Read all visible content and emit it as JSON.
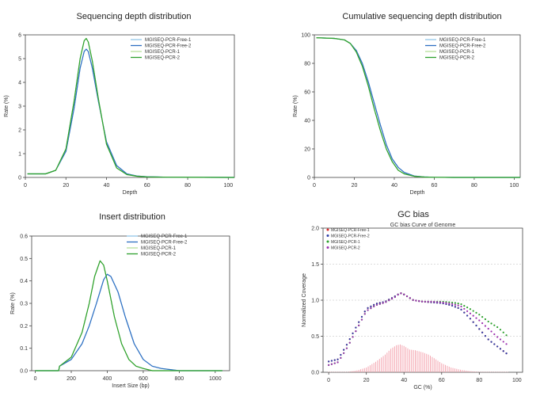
{
  "chart_data": [
    {
      "type": "line",
      "title": "Sequencing depth distribution",
      "xlabel": "Depth",
      "ylabel": "Rate (%)",
      "xlim": [
        0,
        103
      ],
      "ylim": [
        0,
        6
      ],
      "xticks": [
        "0",
        "20",
        "40",
        "60",
        "80",
        "100"
      ],
      "yticks": [
        "0",
        "1",
        "2",
        "3",
        "4",
        "5",
        "6"
      ],
      "legend_position": "top-right",
      "series": [
        {
          "name": "MGISEQ-PCR-Free-1",
          "color": "#92c5e8",
          "x": [
            1,
            10,
            15,
            20,
            24,
            27,
            29,
            30,
            31,
            33,
            36,
            40,
            45,
            50,
            55,
            60,
            70,
            103
          ],
          "y": [
            0.15,
            0.15,
            0.3,
            1.1,
            2.9,
            4.6,
            5.3,
            5.4,
            5.3,
            4.6,
            3.2,
            1.5,
            0.5,
            0.15,
            0.06,
            0.03,
            0.01,
            0.0
          ]
        },
        {
          "name": "MGISEQ-PCR-Free-2",
          "color": "#2e6fc2",
          "x": [
            1,
            10,
            15,
            20,
            24,
            27,
            29,
            30,
            31,
            33,
            36,
            40,
            45,
            50,
            55,
            60,
            70,
            103
          ],
          "y": [
            0.15,
            0.15,
            0.3,
            1.1,
            2.9,
            4.6,
            5.3,
            5.4,
            5.3,
            4.6,
            3.2,
            1.5,
            0.5,
            0.15,
            0.06,
            0.03,
            0.01,
            0.0
          ]
        },
        {
          "name": "MGISEQ-PCR-1",
          "color": "#b7e09a",
          "x": [
            1,
            10,
            15,
            20,
            24,
            27,
            29,
            30,
            31,
            33,
            36,
            40,
            45,
            50,
            55,
            60,
            70,
            103
          ],
          "y": [
            0.15,
            0.15,
            0.3,
            1.2,
            3.2,
            5.0,
            5.75,
            5.85,
            5.7,
            4.9,
            3.3,
            1.4,
            0.4,
            0.12,
            0.05,
            0.02,
            0.01,
            0.0
          ]
        },
        {
          "name": "MGISEQ-PCR-2",
          "color": "#2ca02c",
          "x": [
            1,
            10,
            15,
            20,
            24,
            27,
            29,
            30,
            31,
            33,
            36,
            40,
            45,
            50,
            55,
            60,
            70,
            103
          ],
          "y": [
            0.15,
            0.15,
            0.3,
            1.2,
            3.2,
            5.0,
            5.75,
            5.85,
            5.7,
            4.9,
            3.3,
            1.4,
            0.4,
            0.12,
            0.05,
            0.02,
            0.01,
            0.0
          ]
        }
      ]
    },
    {
      "type": "line",
      "title": "Cumulative sequencing depth distribution",
      "xlabel": "Depth",
      "ylabel": "Rate (%)",
      "xlim": [
        0,
        103
      ],
      "ylim": [
        0,
        100
      ],
      "xticks": [
        "0",
        "20",
        "40",
        "60",
        "80",
        "100"
      ],
      "yticks": [
        "0",
        "20",
        "40",
        "60",
        "80",
        "100"
      ],
      "legend_position": "top-right",
      "series": [
        {
          "name": "MGISEQ-PCR-Free-1",
          "color": "#92c5e8",
          "x": [
            1,
            10,
            15,
            18,
            21,
            24,
            27,
            30,
            33,
            36,
            39,
            42,
            45,
            50,
            55,
            60,
            70,
            103
          ],
          "y": [
            98,
            97.5,
            96.5,
            94,
            89,
            80,
            67,
            52,
            37,
            23,
            13,
            7,
            3.5,
            1,
            0.4,
            0.1,
            0,
            0
          ]
        },
        {
          "name": "MGISEQ-PCR-Free-2",
          "color": "#2e6fc2",
          "x": [
            1,
            10,
            15,
            18,
            21,
            24,
            27,
            30,
            33,
            36,
            39,
            42,
            45,
            50,
            55,
            60,
            70,
            103
          ],
          "y": [
            98,
            97.5,
            96.5,
            94,
            89,
            80,
            67,
            52,
            37,
            23,
            13,
            7,
            3.5,
            1,
            0.4,
            0.1,
            0,
            0
          ]
        },
        {
          "name": "MGISEQ-PCR-1",
          "color": "#b7e09a",
          "x": [
            1,
            10,
            15,
            18,
            21,
            24,
            27,
            30,
            33,
            36,
            39,
            42,
            45,
            50,
            55,
            60,
            70,
            103
          ],
          "y": [
            98,
            97.5,
            96.5,
            94,
            88,
            78,
            64,
            48,
            33,
            20,
            11,
            5,
            2.5,
            0.8,
            0.3,
            0.1,
            0,
            0
          ]
        },
        {
          "name": "MGISEQ-PCR-2",
          "color": "#2ca02c",
          "x": [
            1,
            10,
            15,
            18,
            21,
            24,
            27,
            30,
            33,
            36,
            39,
            42,
            45,
            50,
            55,
            60,
            70,
            103
          ],
          "y": [
            98,
            97.5,
            96.5,
            94,
            88,
            78,
            64,
            48,
            33,
            20,
            11,
            5,
            2.5,
            0.8,
            0.3,
            0.1,
            0,
            0
          ]
        }
      ]
    },
    {
      "type": "line",
      "title": "Insert distribution",
      "xlabel": "Insert Size (bp)",
      "ylabel": "Rate (%)",
      "xlim": [
        -20,
        1080
      ],
      "ylim": [
        0,
        0.6
      ],
      "xticks": [
        "0",
        "200",
        "400",
        "600",
        "800",
        "1000"
      ],
      "yticks": [
        "0.0",
        "0.1",
        "0.2",
        "0.3",
        "0.4",
        "0.5",
        "0.6"
      ],
      "legend_position": "top-right",
      "series": [
        {
          "name": "MGISEQ-PCR-Free-1",
          "color": "#92c5e8",
          "x": [
            0,
            130,
            135,
            200,
            260,
            300,
            340,
            380,
            400,
            420,
            460,
            500,
            550,
            600,
            650,
            700,
            800,
            1040
          ],
          "y": [
            0,
            0,
            0.02,
            0.05,
            0.12,
            0.2,
            0.3,
            0.405,
            0.43,
            0.42,
            0.35,
            0.24,
            0.12,
            0.05,
            0.02,
            0.01,
            0,
            0
          ]
        },
        {
          "name": "MGISEQ-PCR-Free-2",
          "color": "#2e6fc2",
          "x": [
            0,
            130,
            135,
            200,
            260,
            300,
            340,
            380,
            400,
            420,
            460,
            500,
            550,
            600,
            650,
            700,
            800,
            1040
          ],
          "y": [
            0,
            0,
            0.02,
            0.05,
            0.12,
            0.2,
            0.3,
            0.405,
            0.43,
            0.42,
            0.35,
            0.24,
            0.12,
            0.05,
            0.02,
            0.01,
            0,
            0
          ]
        },
        {
          "name": "MGISEQ-PCR-1",
          "color": "#b7e09a",
          "x": [
            0,
            130,
            135,
            200,
            260,
            300,
            330,
            360,
            380,
            400,
            440,
            480,
            520,
            560,
            600,
            650,
            700,
            1040
          ],
          "y": [
            0,
            0,
            0.02,
            0.06,
            0.17,
            0.3,
            0.42,
            0.49,
            0.47,
            0.4,
            0.24,
            0.12,
            0.05,
            0.02,
            0.01,
            0,
            0,
            0
          ]
        },
        {
          "name": "MGISEQ-PCR-2",
          "color": "#2ca02c",
          "x": [
            0,
            130,
            135,
            200,
            260,
            300,
            330,
            360,
            380,
            400,
            440,
            480,
            520,
            560,
            600,
            650,
            700,
            1040
          ],
          "y": [
            0,
            0,
            0.02,
            0.06,
            0.17,
            0.3,
            0.42,
            0.49,
            0.47,
            0.4,
            0.24,
            0.12,
            0.05,
            0.02,
            0.01,
            0,
            0,
            0
          ]
        }
      ]
    },
    {
      "type": "scatter",
      "title": "GC bias",
      "subtitle": "GC bias Curve of Genome",
      "xlabel": "GC (%)",
      "ylabel": "Normalized Coverage",
      "xlim": [
        -3,
        103
      ],
      "ylim": [
        0,
        2.0
      ],
      "xticks": [
        "0",
        "20",
        "40",
        "60",
        "80",
        "100"
      ],
      "yticks": [
        "0.0",
        "0.5",
        "1.0",
        "1.5",
        "2.0"
      ],
      "hlines": [
        0.5,
        1.0,
        1.5
      ],
      "legend_position": "top-left",
      "series": [
        {
          "name": "MGISEQ-PCR-Free-1",
          "color": "#d62728",
          "x": [
            0,
            5,
            10,
            15,
            20,
            25,
            30,
            35,
            38,
            40,
            45,
            50,
            55,
            60,
            65,
            70,
            75,
            80,
            85,
            90,
            95
          ],
          "y": [
            0.15,
            0.18,
            0.4,
            0.65,
            0.88,
            0.95,
            0.98,
            1.05,
            1.1,
            1.08,
            1.0,
            0.98,
            0.97,
            0.96,
            0.93,
            0.88,
            0.75,
            0.6,
            0.45,
            0.35,
            0.25
          ]
        },
        {
          "name": "MGISEQ-PCR-Free-2",
          "color": "#2e3fa8",
          "x": [
            0,
            5,
            10,
            15,
            20,
            25,
            30,
            35,
            38,
            40,
            45,
            50,
            55,
            60,
            65,
            70,
            75,
            80,
            85,
            90,
            95
          ],
          "y": [
            0.15,
            0.18,
            0.4,
            0.65,
            0.88,
            0.95,
            0.98,
            1.05,
            1.1,
            1.08,
            1.0,
            0.98,
            0.97,
            0.96,
            0.93,
            0.88,
            0.75,
            0.6,
            0.45,
            0.35,
            0.25
          ]
        },
        {
          "name": "MGISEQ-PCR-1",
          "color": "#2ca02c",
          "x": [
            0,
            5,
            10,
            15,
            20,
            25,
            30,
            35,
            38,
            40,
            45,
            50,
            55,
            60,
            65,
            70,
            75,
            80,
            85,
            90,
            95
          ],
          "y": [
            0.1,
            0.14,
            0.35,
            0.6,
            0.85,
            0.93,
            0.97,
            1.04,
            1.1,
            1.08,
            1.0,
            0.98,
            0.98,
            0.98,
            0.97,
            0.95,
            0.88,
            0.8,
            0.7,
            0.62,
            0.5
          ]
        },
        {
          "name": "MGISEQ-PCR-2",
          "color": "#9b2fae",
          "x": [
            0,
            5,
            10,
            15,
            20,
            25,
            30,
            35,
            38,
            40,
            45,
            50,
            55,
            60,
            65,
            70,
            75,
            80,
            85,
            90,
            95
          ],
          "y": [
            0.1,
            0.14,
            0.35,
            0.6,
            0.85,
            0.93,
            0.97,
            1.04,
            1.1,
            1.08,
            1.0,
            0.98,
            0.98,
            0.97,
            0.95,
            0.92,
            0.82,
            0.72,
            0.6,
            0.48,
            0.38
          ]
        }
      ],
      "bars": {
        "color": "#f4a5b0",
        "x": [
          0,
          5,
          10,
          15,
          20,
          25,
          30,
          33,
          36,
          38,
          40,
          43,
          46,
          50,
          53,
          56,
          60,
          65,
          70,
          75,
          80,
          85,
          90,
          95
        ],
        "y": [
          0.0,
          0.0,
          0.0,
          0.02,
          0.06,
          0.14,
          0.24,
          0.32,
          0.37,
          0.38,
          0.36,
          0.31,
          0.3,
          0.27,
          0.24,
          0.19,
          0.12,
          0.06,
          0.03,
          0.01,
          0.0,
          0.0,
          0.0,
          0.0
        ]
      }
    }
  ]
}
